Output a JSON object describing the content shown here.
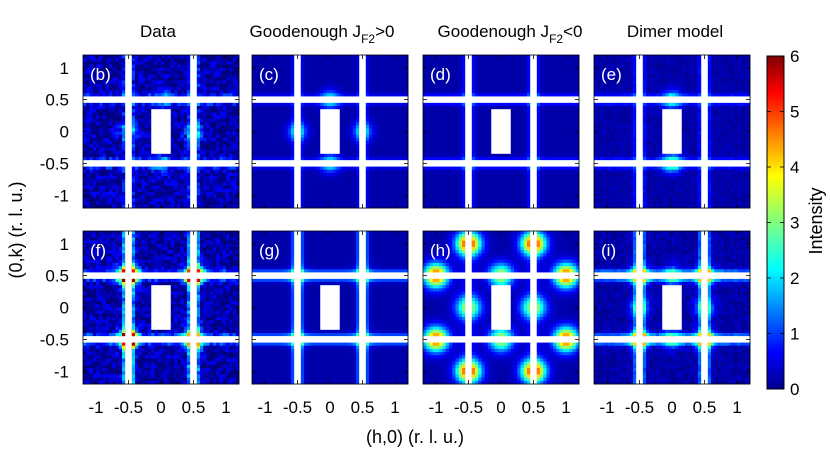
{
  "chart_data": {
    "type": "heatmap",
    "description_units": "reciprocal lattice units",
    "columns": [
      {
        "title": "Data"
      },
      {
        "title": "Goodenough J",
        "subscript": "F2",
        "suffix": ">0"
      },
      {
        "title": "Goodenough J",
        "subscript": "F2",
        "suffix": "<0"
      },
      {
        "title": "Dimer model"
      }
    ],
    "panels": [
      {
        "label": "(b)",
        "row": 0,
        "col": 0,
        "model": "rods",
        "vertical_strength": 0.3,
        "horizontal_strength": 0.3,
        "blobs": [
          [
            0.5,
            0.0,
            0.25
          ],
          [
            -0.5,
            0.0,
            0.2
          ],
          [
            0.0,
            0.5,
            0.2
          ],
          [
            0.0,
            -0.5,
            0.2
          ]
        ],
        "noise": 0.18
      },
      {
        "label": "(c)",
        "row": 0,
        "col": 1,
        "model": "rods",
        "vertical_strength": 0.2,
        "horizontal_strength": 0.2,
        "blobs": [
          [
            0.0,
            0.5,
            0.3
          ],
          [
            0.0,
            -0.5,
            0.3
          ],
          [
            0.5,
            0.0,
            0.3
          ],
          [
            -0.5,
            0.0,
            0.3
          ]
        ],
        "noise": 0.0
      },
      {
        "label": "(d)",
        "row": 0,
        "col": 2,
        "model": "rods",
        "vertical_strength": 0.3,
        "horizontal_strength": 0.3,
        "blobs": [],
        "noise": 0.0
      },
      {
        "label": "(e)",
        "row": 0,
        "col": 3,
        "model": "rods",
        "vertical_strength": 0.3,
        "horizontal_strength": 0.3,
        "blobs": [
          [
            0.0,
            0.5,
            0.3
          ],
          [
            0.0,
            -0.5,
            0.4
          ]
        ],
        "noise": 0.04
      },
      {
        "label": "(f)",
        "row": 1,
        "col": 0,
        "model": "rods",
        "vertical_strength": 0.8,
        "horizontal_strength": 0.45,
        "blobs": [
          [
            -0.5,
            0.5,
            1.0
          ],
          [
            -0.5,
            -0.5,
            0.9
          ],
          [
            0.5,
            0.5,
            0.8
          ],
          [
            0.5,
            -0.5,
            0.7
          ]
        ],
        "noise": 0.18
      },
      {
        "label": "(g)",
        "row": 1,
        "col": 1,
        "model": "rods",
        "vertical_strength": 0.55,
        "horizontal_strength": 0.55,
        "blobs": [
          [
            -0.5,
            0.5,
            0.15
          ],
          [
            0.5,
            0.5,
            0.15
          ],
          [
            -0.5,
            -0.5,
            0.15
          ],
          [
            0.5,
            -0.5,
            0.15
          ]
        ],
        "noise": 0.0
      },
      {
        "label": "(h)",
        "row": 1,
        "col": 2,
        "model": "spots",
        "vertical_strength": 0.0,
        "horizontal_strength": 0.0,
        "blobs": [
          [
            -0.5,
            1.0,
            0.85
          ],
          [
            0.5,
            1.0,
            0.85
          ],
          [
            -0.5,
            -1.0,
            0.85
          ],
          [
            0.5,
            -1.0,
            0.85
          ],
          [
            -1.0,
            0.5,
            0.8
          ],
          [
            1.0,
            0.5,
            0.8
          ],
          [
            -1.0,
            -0.5,
            0.8
          ],
          [
            1.0,
            -0.5,
            0.8
          ],
          [
            -0.5,
            0.0,
            0.55
          ],
          [
            0.5,
            0.0,
            0.55
          ],
          [
            0.0,
            0.5,
            0.55
          ],
          [
            0.0,
            -0.5,
            0.55
          ]
        ],
        "noise": 0.0
      },
      {
        "label": "(i)",
        "row": 1,
        "col": 3,
        "model": "rods",
        "vertical_strength": 0.62,
        "horizontal_strength": 0.62,
        "blobs": [
          [
            -0.5,
            0.5,
            0.5
          ],
          [
            0.5,
            0.5,
            0.5
          ],
          [
            -0.5,
            -0.5,
            0.5
          ],
          [
            0.5,
            -0.5,
            0.5
          ],
          [
            0.0,
            0.5,
            0.3
          ],
          [
            0.0,
            -0.5,
            0.3
          ],
          [
            -0.5,
            0.0,
            0.3
          ],
          [
            0.5,
            0.0,
            0.3
          ]
        ],
        "noise": 0.06
      }
    ],
    "x_ticks": [
      -1,
      -0.5,
      0,
      0.5,
      1
    ],
    "x_tick_labels": [
      "-1",
      "-0.5",
      "0",
      "0.5",
      "1"
    ],
    "y_ticks": [
      1,
      0.5,
      0,
      -0.5,
      -1
    ],
    "y_tick_labels": [
      "1",
      "0.5",
      "0",
      "-0.5",
      "-1"
    ],
    "xlim": [
      -1.2,
      1.2
    ],
    "ylim": [
      -1.2,
      1.2
    ],
    "xlabel": "(h,0) (r. l. u.)",
    "ylabel": "(0,k) (r. l. u.)",
    "colorbar": {
      "label": "Intensity",
      "range": [
        0,
        6
      ],
      "ticks": [
        0,
        1,
        2,
        3,
        4,
        5,
        6
      ],
      "tick_labels": [
        "0",
        "1",
        "2",
        "3",
        "4",
        "5",
        "6"
      ],
      "colormap": "jet"
    },
    "masked_band_half_width": 0.05,
    "masked_center_half_width": 0.15
  }
}
